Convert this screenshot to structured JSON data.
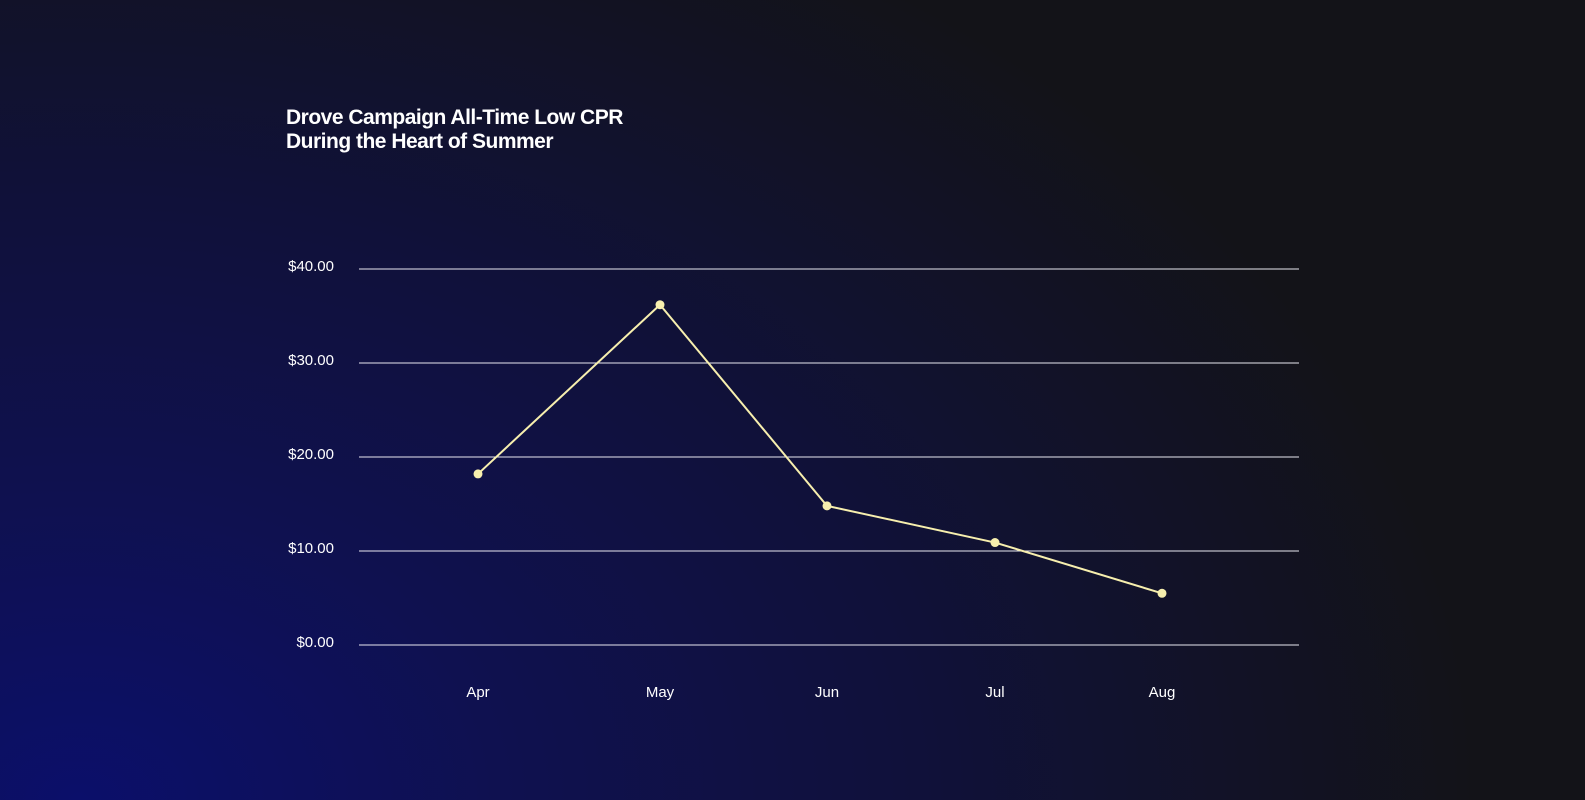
{
  "chart_data": {
    "type": "line",
    "title": [
      "Drove Campaign All-Time Low CPR",
      "During the Heart of Summer"
    ],
    "categories": [
      "Apr",
      "May",
      "Jun",
      "Jul",
      "Aug"
    ],
    "series": [
      {
        "values": [
          18.2,
          36.2,
          14.8,
          10.9,
          5.5
        ]
      }
    ],
    "yticks": [
      0,
      10,
      20,
      30,
      40
    ],
    "ytick_labels": [
      "$0.00",
      "$10.00",
      "$20.00",
      "$30.00",
      "$40.00"
    ],
    "ylim": [
      0,
      40
    ],
    "grid": true,
    "line_color": "#f7efae",
    "grid_color": "#e8e8f0",
    "text_color": "#ffffff"
  }
}
